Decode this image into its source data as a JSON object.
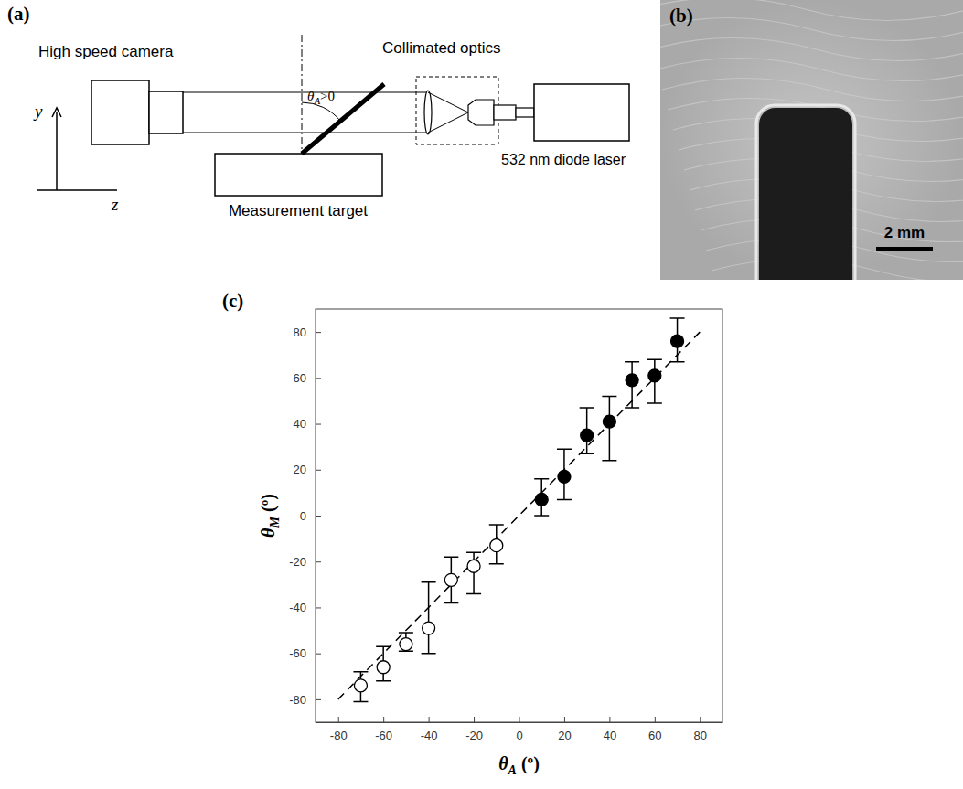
{
  "diagram": {
    "label": "(a)",
    "camera": "High speed camera",
    "optics": "Collimated optics",
    "laser": "532 nm diode laser",
    "target": "Measurement target",
    "angle": "θA>0",
    "y_axis": "y",
    "z_axis": "z"
  },
  "photo": {
    "label": "(b)",
    "scale_bar": "2 mm"
  },
  "chart_data": {
    "type": "scatter",
    "title": "(c)",
    "x_label": "θA (º)",
    "y_label": "θM (º)",
    "xlim": [
      -90,
      90
    ],
    "ylim": [
      -90,
      90
    ],
    "xticks": [
      -80,
      -60,
      -40,
      -20,
      0,
      20,
      40,
      60,
      80
    ],
    "yticks": [
      -80,
      -60,
      -40,
      -20,
      0,
      20,
      40,
      60,
      80
    ],
    "grid": false,
    "series": [
      {
        "type": "scatter",
        "marker": "circle-open",
        "color": "#000000",
        "x": [
          -70,
          -60,
          -50,
          -40,
          -30,
          -20,
          -10
        ],
        "values": [
          -74,
          -66,
          -56,
          -49,
          -28,
          -22,
          -13
        ],
        "errors_minus": [
          7,
          6,
          3,
          11,
          10,
          12,
          8
        ],
        "errors_plus": [
          6,
          9,
          5,
          20,
          10,
          6,
          9
        ]
      },
      {
        "type": "scatter",
        "marker": "circle",
        "color": "#000000",
        "x": [
          10,
          20,
          30,
          40,
          50,
          60,
          70
        ],
        "values": [
          7,
          17,
          35,
          41,
          59,
          61,
          76
        ],
        "errors_minus": [
          7,
          10,
          8,
          17,
          12,
          12,
          9
        ],
        "errors_plus": [
          9,
          12,
          12,
          11,
          8,
          7,
          10
        ]
      },
      {
        "type": "line",
        "line_style": "dashed",
        "color": "#000000",
        "x": [
          -80,
          80
        ],
        "values": [
          -80,
          80
        ]
      }
    ]
  }
}
